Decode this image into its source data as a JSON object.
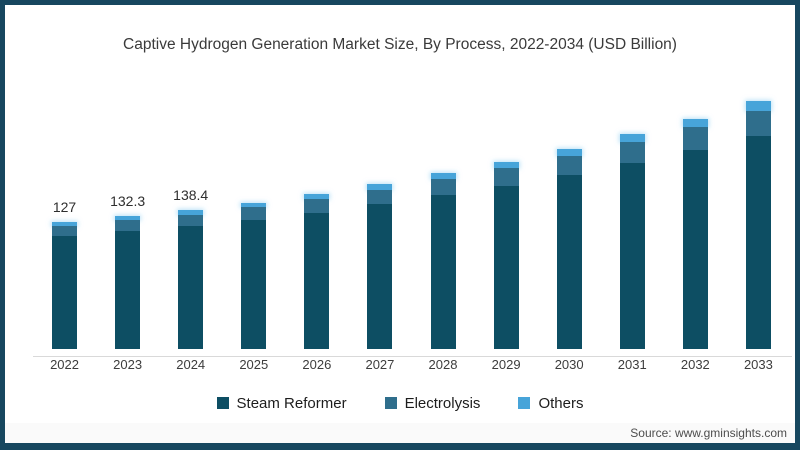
{
  "title": "Captive Hydrogen Generation Market Size, By Process, 2022-2034 (USD Billion)",
  "source": "Source: www.gminsights.com",
  "colors": {
    "frame": "#17475f",
    "steam_reformer": "#0d4e63",
    "electrolysis": "#2f6e8c",
    "others": "#47a4d9",
    "axis_line": "#d9d9d9"
  },
  "legend": [
    {
      "label": "Steam Reformer",
      "color_key": "steam_reformer"
    },
    {
      "label": "Electrolysis",
      "color_key": "electrolysis"
    },
    {
      "label": "Others",
      "color_key": "others"
    }
  ],
  "chart_data": {
    "type": "bar",
    "stacked": true,
    "title": "Captive Hydrogen Generation Market Size, By Process, 2022-2034 (USD Billion)",
    "xlabel": "",
    "ylabel": "USD Billion",
    "ylim": [
      0,
      260
    ],
    "grid": false,
    "legend_position": "bottom",
    "categories": [
      "2022",
      "2023",
      "2024",
      "2025",
      "2026",
      "2027",
      "2028",
      "2029",
      "2030",
      "2031",
      "2032",
      "2033"
    ],
    "series": [
      {
        "name": "Steam Reformer",
        "color_key": "steam_reformer",
        "values": [
          113.0,
          117.4,
          122.4,
          128.8,
          136.2,
          144.4,
          153.3,
          163.2,
          174.0,
          185.9,
          198.9,
          213.2
        ]
      },
      {
        "name": "Electrolysis",
        "color_key": "electrolysis",
        "values": [
          10.2,
          10.9,
          11.6,
          12.6,
          13.6,
          14.7,
          16.0,
          17.4,
          19.0,
          20.7,
          22.7,
          24.9
        ]
      },
      {
        "name": "Others",
        "color_key": "others",
        "values": [
          3.8,
          4.0,
          4.4,
          4.7,
          5.1,
          5.5,
          6.0,
          6.5,
          7.1,
          7.8,
          8.5,
          9.3
        ]
      }
    ],
    "totals": [
      127,
      132.3,
      138.4,
      146.1,
      154.9,
      164.6,
      175.3,
      187.1,
      200.1,
      214.4,
      230.1,
      247.4
    ],
    "data_labels": [
      "127",
      "132.3",
      "138.4",
      "",
      "",
      "",
      "",
      "",
      "",
      "",
      "",
      ""
    ]
  }
}
